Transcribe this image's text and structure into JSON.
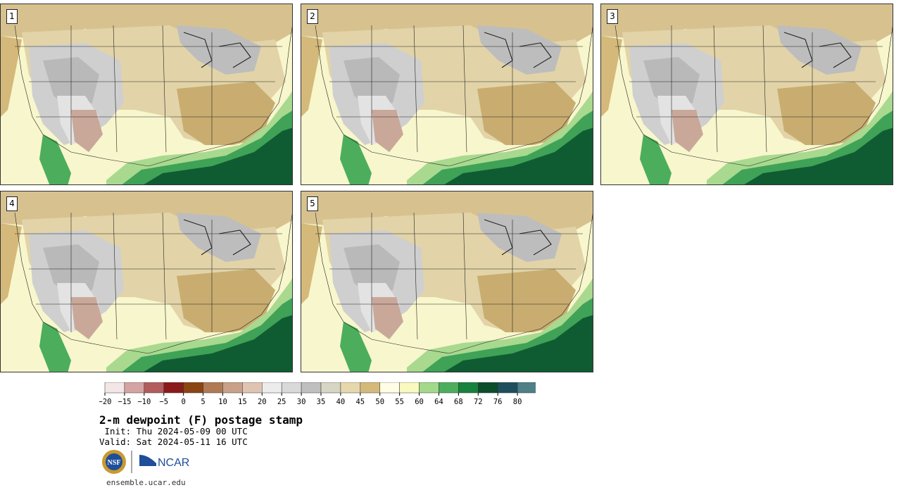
{
  "stamps": [
    {
      "label": "1"
    },
    {
      "label": "2"
    },
    {
      "label": "3"
    },
    {
      "label": "4"
    },
    {
      "label": "5"
    }
  ],
  "colorbar": {
    "ticks": [
      "−20",
      "−15",
      "−10",
      "−5",
      "0",
      "5",
      "10",
      "15",
      "20",
      "25",
      "30",
      "35",
      "40",
      "45",
      "50",
      "55",
      "60",
      "64",
      "68",
      "72",
      "76",
      "80"
    ],
    "colors": [
      "#f3e6e6",
      "#d6a3a3",
      "#b35c5c",
      "#8b1a1a",
      "#8b4513",
      "#b07a55",
      "#c9a089",
      "#e0c4b2",
      "#ececec",
      "#d9d9d9",
      "#bfbfbf",
      "#d7d5c3",
      "#e6d7ad",
      "#d4b97a",
      "#fffde4",
      "#fafac0",
      "#a3d98b",
      "#4cae5c",
      "#17813e",
      "#0c4d2a",
      "#1e4f5c",
      "#4f7f87"
    ]
  },
  "title": "2-m dewpoint (F) postage stamp",
  "init": " Init: Thu 2024-05-09 00 UTC",
  "valid": "Valid: Sat 2024-05-11 16 UTC",
  "logos": {
    "nsf": "NSF",
    "ncar": "NCAR"
  },
  "url": "ensemble.ucar.edu"
}
